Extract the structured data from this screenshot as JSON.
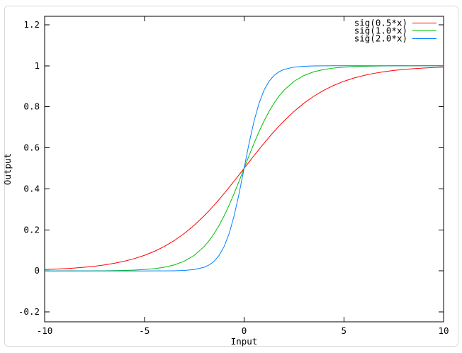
{
  "figure": {
    "background": "#ffffff",
    "border_color": "#d8d8d8"
  },
  "chart_data": {
    "type": "line",
    "title": "",
    "xlabel": "Input",
    "ylabel": "Output",
    "xlim": [
      -10,
      10
    ],
    "ylim": [
      -0.248,
      1.241
    ],
    "xtick_values": [
      -10,
      -5,
      0,
      5,
      10
    ],
    "xtick_labels": [
      "-10",
      "-5",
      "0",
      "5",
      "10"
    ],
    "ytick_values": [
      -0.2,
      0,
      0.2,
      0.4,
      0.6,
      0.8,
      1,
      1.2
    ],
    "ytick_labels": [
      "-0.2",
      "0",
      "0.2",
      "0.4",
      "0.6",
      "0.8",
      "1",
      "1.2"
    ],
    "grid": false,
    "legend_position": "top-right-inside",
    "axis_color": "#000000",
    "x": [
      -10,
      -9.5,
      -9,
      -8.5,
      -8,
      -7.5,
      -7,
      -6.5,
      -6,
      -5.5,
      -5,
      -4.5,
      -4,
      -3.5,
      -3,
      -2.5,
      -2,
      -1.75,
      -1.5,
      -1.25,
      -1,
      -0.75,
      -0.5,
      -0.25,
      0,
      0.25,
      0.5,
      0.75,
      1,
      1.25,
      1.5,
      1.75,
      2,
      2.5,
      3,
      3.5,
      4,
      4.5,
      5,
      5.5,
      6,
      6.5,
      7,
      7.5,
      8,
      8.5,
      9,
      9.5,
      10
    ],
    "series": [
      {
        "name": "sig(0.5*x)",
        "color": "#ff0000",
        "k": 0.5,
        "values": [
          0.00669,
          0.00858,
          0.01099,
          0.01406,
          0.01799,
          0.02297,
          0.02931,
          0.03732,
          0.04743,
          0.06008,
          0.07586,
          0.09535,
          0.1192,
          0.14805,
          0.18243,
          0.2227,
          0.26894,
          0.29421,
          0.32082,
          0.34864,
          0.37754,
          0.40732,
          0.43782,
          0.46879,
          0.5,
          0.53121,
          0.56218,
          0.59268,
          0.62246,
          0.65136,
          0.67918,
          0.70579,
          0.73106,
          0.7773,
          0.81757,
          0.85195,
          0.8808,
          0.90465,
          0.92414,
          0.93992,
          0.95257,
          0.96268,
          0.97069,
          0.97703,
          0.98201,
          0.98594,
          0.98901,
          0.99142,
          0.99331
        ]
      },
      {
        "name": "sig(1.0*x)",
        "color": "#00c000",
        "k": 1.0,
        "values": [
          5e-05,
          7e-05,
          0.00012,
          0.0002,
          0.00034,
          0.00055,
          0.00091,
          0.0015,
          0.00247,
          0.00407,
          0.00669,
          0.01099,
          0.01799,
          0.02931,
          0.04743,
          0.07586,
          0.1192,
          0.14805,
          0.18243,
          0.2227,
          0.26894,
          0.32082,
          0.37754,
          0.43782,
          0.5,
          0.56218,
          0.62246,
          0.67918,
          0.73106,
          0.7773,
          0.81757,
          0.85195,
          0.8808,
          0.92414,
          0.95257,
          0.97069,
          0.98201,
          0.98901,
          0.99331,
          0.99593,
          0.99753,
          0.9985,
          0.99909,
          0.99945,
          0.99966,
          0.9998,
          0.99988,
          0.99993,
          0.99995
        ]
      },
      {
        "name": "sig(2.0*x)",
        "color": "#0080ff",
        "k": 2.0,
        "values": [
          0,
          0,
          0,
          0,
          0,
          0,
          0,
          0,
          1e-05,
          2e-05,
          5e-05,
          0.00012,
          0.00034,
          0.00091,
          0.00247,
          0.00669,
          0.01799,
          0.02931,
          0.04743,
          0.07586,
          0.1192,
          0.18243,
          0.26894,
          0.37754,
          0.5,
          0.62246,
          0.73106,
          0.81757,
          0.8808,
          0.92414,
          0.95257,
          0.97069,
          0.98201,
          0.99331,
          0.99753,
          0.99909,
          0.99966,
          0.99988,
          0.99995,
          0.99998,
          0.99999,
          1,
          1,
          1,
          1,
          1,
          1,
          1,
          1
        ]
      }
    ]
  }
}
